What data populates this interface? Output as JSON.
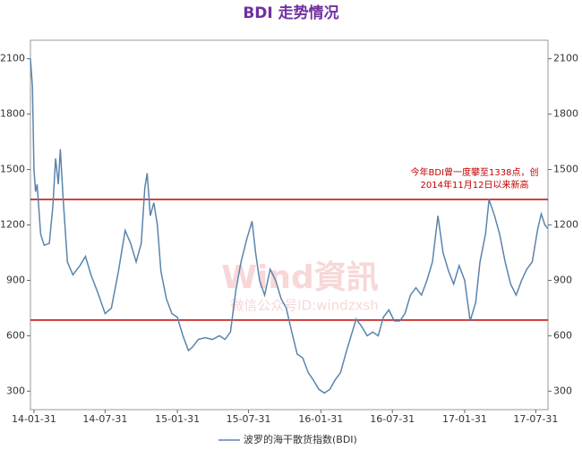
{
  "chart_data": {
    "type": "line",
    "title": "BDI 走势情况",
    "watermark": [
      "Wind資訊",
      "微信公众号ID:windzxsh"
    ],
    "annotation": [
      "今年BDI曾一度攀至1338点，创",
      "2014年11月12日以来新高"
    ],
    "reference_lines": [
      {
        "value": 1338,
        "color": "#c00000"
      },
      {
        "value": 685,
        "color": "#c00000"
      }
    ],
    "xlim": [
      "14-01-22",
      "17-08-31"
    ],
    "xticks": [
      "14-01-31",
      "14-07-31",
      "15-01-31",
      "15-07-31",
      "16-01-31",
      "16-07-31",
      "17-01-31",
      "17-07-31"
    ],
    "ylim": [
      200,
      2200
    ],
    "yticks": [
      300,
      600,
      900,
      1200,
      1500,
      1800,
      2100
    ],
    "grid": false,
    "legend": "bottom",
    "x": [
      "14-01-22",
      "14-01-27",
      "14-01-31",
      "14-02-04",
      "14-02-08",
      "14-02-17",
      "14-02-26",
      "14-03-11",
      "14-03-20",
      "14-03-27",
      "14-04-03",
      "14-04-08",
      "14-04-15",
      "14-04-26",
      "14-05-10",
      "14-05-28",
      "14-06-11",
      "14-06-25",
      "14-07-13",
      "14-07-31",
      "14-08-16",
      "14-09-03",
      "14-09-20",
      "14-10-04",
      "14-10-18",
      "14-10-31",
      "14-11-09",
      "14-11-15",
      "14-11-23",
      "14-12-02",
      "14-12-11",
      "14-12-20",
      "15-01-03",
      "15-01-17",
      "15-01-31",
      "15-02-14",
      "15-02-28",
      "15-03-11",
      "15-03-25",
      "15-04-12",
      "15-04-30",
      "15-05-18",
      "15-06-01",
      "15-06-15",
      "15-06-29",
      "15-07-12",
      "15-07-26",
      "15-08-09",
      "15-08-18",
      "15-08-28",
      "15-09-10",
      "15-09-24",
      "15-10-08",
      "15-10-22",
      "15-11-04",
      "15-11-18",
      "15-12-02",
      "15-12-16",
      "15-12-30",
      "16-01-12",
      "16-01-26",
      "16-02-09",
      "16-02-23",
      "16-03-07",
      "16-03-21",
      "16-04-03",
      "16-04-17",
      "16-04-30",
      "16-05-14",
      "16-05-28",
      "16-06-11",
      "16-06-25",
      "16-07-08",
      "16-07-22",
      "16-08-05",
      "16-08-19",
      "16-09-01",
      "16-09-15",
      "16-09-29",
      "16-10-13",
      "16-10-27",
      "16-11-10",
      "16-11-24",
      "16-12-07",
      "16-12-21",
      "17-01-03",
      "17-01-17",
      "17-01-31",
      "17-02-14",
      "17-02-28",
      "17-03-11",
      "17-03-25",
      "17-04-03",
      "17-04-17",
      "17-04-30",
      "17-05-14",
      "17-05-28",
      "17-06-11",
      "17-06-25",
      "17-07-08",
      "17-07-22",
      "17-08-05",
      "17-08-14",
      "17-08-23",
      "17-08-31"
    ],
    "series": [
      {
        "name": "波罗的海干散货指数(BDI)",
        "color": "#5b84ad",
        "values": [
          2100,
          1950,
          1500,
          1380,
          1420,
          1150,
          1090,
          1100,
          1300,
          1560,
          1420,
          1610,
          1350,
          1000,
          930,
          980,
          1030,
          930,
          830,
          720,
          750,
          950,
          1170,
          1100,
          1000,
          1100,
          1400,
          1480,
          1250,
          1320,
          1200,
          950,
          800,
          720,
          700,
          600,
          520,
          540,
          580,
          590,
          580,
          600,
          580,
          620,
          850,
          1000,
          1120,
          1220,
          1050,
          900,
          820,
          960,
          900,
          800,
          750,
          620,
          500,
          480,
          400,
          360,
          310,
          290,
          310,
          360,
          400,
          500,
          600,
          690,
          650,
          600,
          620,
          600,
          700,
          740,
          680,
          680,
          720,
          820,
          860,
          820,
          900,
          1000,
          1250,
          1050,
          950,
          880,
          980,
          900,
          680,
          780,
          1000,
          1150,
          1338,
          1250,
          1150,
          1000,
          880,
          820,
          900,
          960,
          1000,
          1180,
          1260,
          1200,
          1180
        ]
      }
    ]
  }
}
